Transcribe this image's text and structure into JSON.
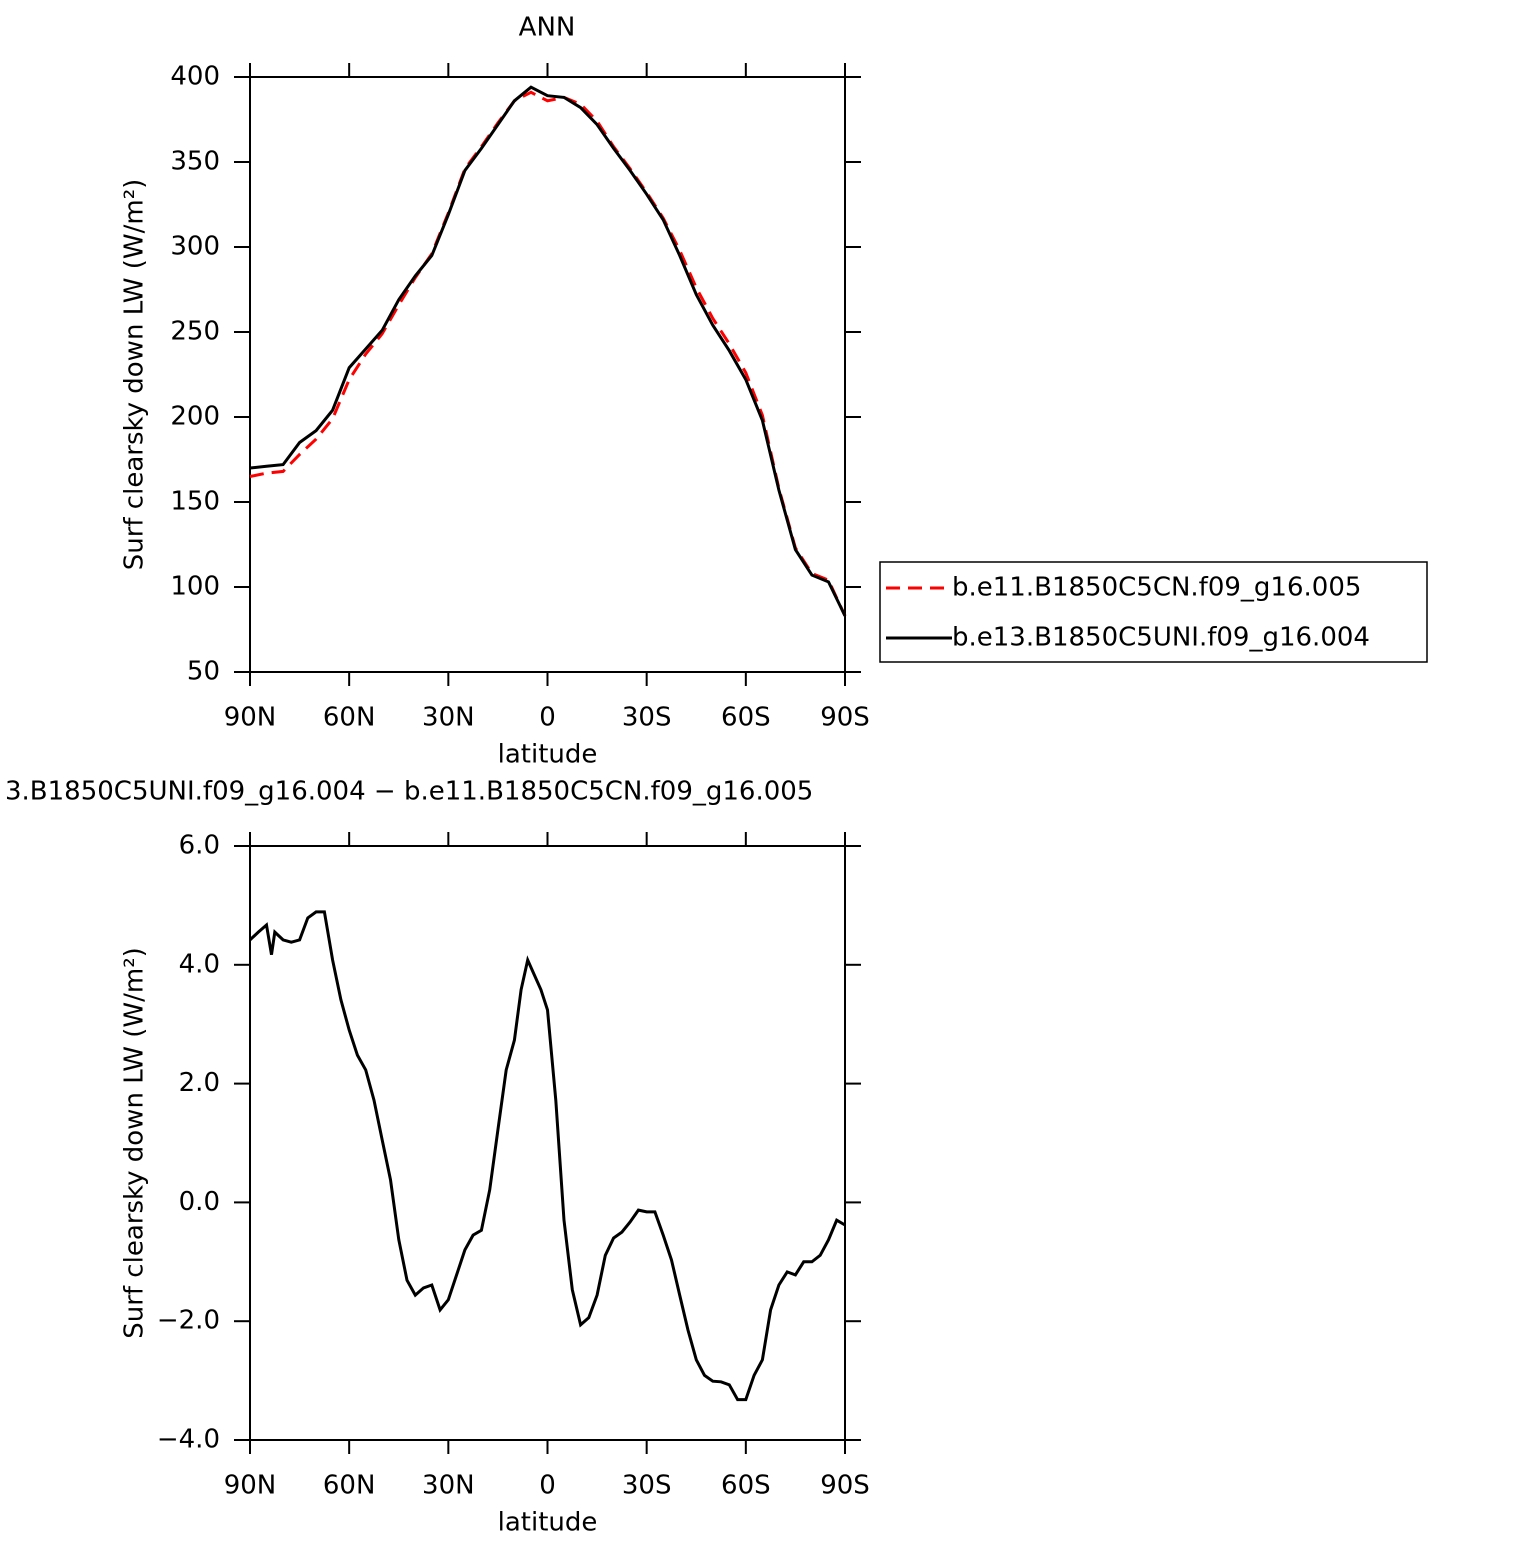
{
  "chart_data": [
    {
      "type": "line",
      "title": "ANN",
      "xlabel": "latitude",
      "ylabel": "Surf clearsky down LW (W/m²)",
      "x": [
        90,
        85,
        80,
        75,
        70,
        65,
        60,
        55,
        50,
        45,
        40,
        35,
        30,
        25,
        20,
        15,
        10,
        5,
        0,
        -5,
        -10,
        -15,
        -20,
        -25,
        -30,
        -35,
        -40,
        -45,
        -50,
        -55,
        -60,
        -65,
        -70,
        -75,
        -80,
        -85,
        -90
      ],
      "series": [
        {
          "name": "b.e11.B1850C5CN.f09_g16.005",
          "color": "#ff0000",
          "linestyle": "dashed",
          "values": [
            165,
            167,
            168,
            178,
            187,
            199,
            222,
            237,
            249,
            266,
            282,
            296,
            320,
            346,
            359,
            373,
            386,
            391,
            386,
            388,
            384,
            374,
            359,
            346,
            332,
            317,
            298,
            276,
            258,
            243,
            226,
            201,
            158,
            123,
            108,
            104,
            83
          ]
        },
        {
          "name": "b.e13.B1850C5UNI.f09_g16.004",
          "color": "#000000",
          "linestyle": "solid",
          "values": [
            170,
            171,
            172,
            185,
            192,
            204,
            229,
            240,
            251,
            269,
            283,
            295,
            319,
            345,
            358,
            372,
            386,
            394,
            389,
            388,
            382,
            372,
            358,
            345,
            331,
            316,
            295,
            272,
            254,
            239,
            222,
            198,
            157,
            122,
            107,
            103,
            83
          ]
        }
      ],
      "xlim": [
        90,
        -90
      ],
      "xticks": [
        {
          "value": 90,
          "label": "90N"
        },
        {
          "value": 60,
          "label": "60N"
        },
        {
          "value": 30,
          "label": "30N"
        },
        0,
        {
          "value": -30,
          "label": "30S"
        },
        {
          "value": -60,
          "label": "60S"
        },
        {
          "value": -90,
          "label": "90S"
        }
      ],
      "ylim": [
        50,
        400
      ],
      "yticks": [
        50,
        100,
        150,
        200,
        250,
        300,
        350,
        400
      ],
      "legend": "right"
    },
    {
      "type": "line",
      "title": "3.B1850C5UNI.f09_g16.004 − b.e11.B1850C5CN.f09_g16.005",
      "xlabel": "latitude",
      "ylabel": "Surf clearsky down LW (W/m²)",
      "x": [
        90,
        87.5,
        85,
        83.5,
        82.5,
        80,
        77.5,
        75,
        72.5,
        70,
        67.5,
        65,
        62.5,
        60,
        57.5,
        55,
        52.5,
        50,
        47.5,
        45,
        42.5,
        40,
        37.5,
        35,
        32.5,
        30,
        27.5,
        25,
        22.5,
        20,
        17.5,
        15,
        12.5,
        10,
        8,
        6,
        4,
        2,
        0,
        -2.5,
        -5,
        -7.5,
        -10,
        -12.5,
        -15,
        -17.5,
        -20,
        -22.5,
        -25,
        -27.5,
        -30,
        -32.5,
        -35,
        -37.5,
        -40,
        -42.5,
        -45,
        -47.5,
        -50,
        -52.5,
        -55,
        -57.5,
        -60,
        -62.5,
        -65,
        -67.5,
        -70,
        -72.5,
        -75,
        -77.5,
        -80,
        -82.5,
        -85,
        -87.5,
        -90
      ],
      "values": [
        4.42,
        4.55,
        4.67,
        4.17,
        4.55,
        4.42,
        4.38,
        4.42,
        4.79,
        4.89,
        4.89,
        4.08,
        3.41,
        2.9,
        2.48,
        2.23,
        1.72,
        1.05,
        0.38,
        -0.63,
        -1.31,
        -1.56,
        -1.44,
        -1.39,
        -1.81,
        -1.64,
        -1.22,
        -0.8,
        -0.55,
        -0.47,
        0.21,
        1.22,
        2.23,
        2.73,
        3.58,
        4.08,
        3.83,
        3.58,
        3.24,
        1.72,
        -0.3,
        -1.47,
        -2.06,
        -1.94,
        -1.56,
        -0.89,
        -0.6,
        -0.5,
        -0.33,
        -0.13,
        -0.16,
        -0.16,
        -0.55,
        -0.97,
        -1.56,
        -2.15,
        -2.65,
        -2.91,
        -3.01,
        -3.02,
        -3.07,
        -3.32,
        -3.32,
        -2.91,
        -2.65,
        -1.81,
        -1.39,
        -1.17,
        -1.22,
        -1,
        -1,
        -0.89,
        -0.63,
        -0.3,
        -0.38
      ],
      "color": "#000000",
      "xlim": [
        90,
        -90
      ],
      "xticks": [
        {
          "value": 90,
          "label": "90N"
        },
        {
          "value": 60,
          "label": "60N"
        },
        {
          "value": 30,
          "label": "30N"
        },
        0,
        {
          "value": -30,
          "label": "30S"
        },
        {
          "value": -60,
          "label": "60S"
        },
        {
          "value": -90,
          "label": "90S"
        }
      ],
      "ylim": [
        -4,
        6
      ],
      "yticks": [
        {
          "value": -4,
          "label": "−4.0"
        },
        {
          "value": -2,
          "label": "−2.0"
        },
        {
          "value": 0,
          "label": "0.0"
        },
        {
          "value": 2,
          "label": "2.0"
        },
        {
          "value": 4,
          "label": "4.0"
        },
        {
          "value": 6,
          "label": "6.0"
        }
      ]
    }
  ]
}
